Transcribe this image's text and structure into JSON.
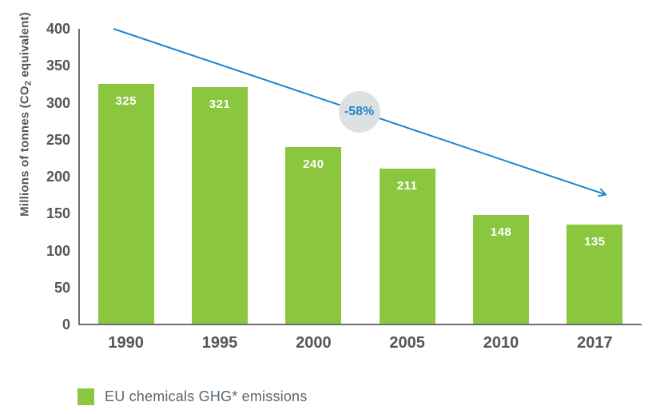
{
  "chart_data": {
    "type": "bar",
    "categories": [
      "1990",
      "1995",
      "2000",
      "2005",
      "2010",
      "2017"
    ],
    "values": [
      325,
      321,
      240,
      211,
      148,
      135
    ],
    "title": "",
    "xlabel": "",
    "ylabel": {
      "pre": "Millions of tonnes (CO",
      "sub": "2",
      "post": " equivalent)"
    },
    "yticks": [
      0,
      50,
      100,
      150,
      200,
      250,
      300,
      350,
      400
    ],
    "ylim": [
      0,
      400
    ],
    "grid": false,
    "legend_position": "bottom-left",
    "legend": [
      {
        "label": "EU chemicals GHG* emissions",
        "color": "#8BC63F"
      }
    ],
    "trend_arrow": {
      "label": "-58%",
      "start": {
        "x_frac": 0.061,
        "value": 400
      },
      "end": {
        "x_frac": 0.935,
        "value": 176
      }
    },
    "colors": {
      "bar": "#8BC63F",
      "bar_label": "#FFFFFF",
      "trend": "#1B87C9",
      "badge_bg": "#DDE1E4",
      "badge_text": "#1B87C9",
      "axis": "#6D6E71",
      "tick_text": "#54565B",
      "legend_text": "#5A6670"
    }
  }
}
